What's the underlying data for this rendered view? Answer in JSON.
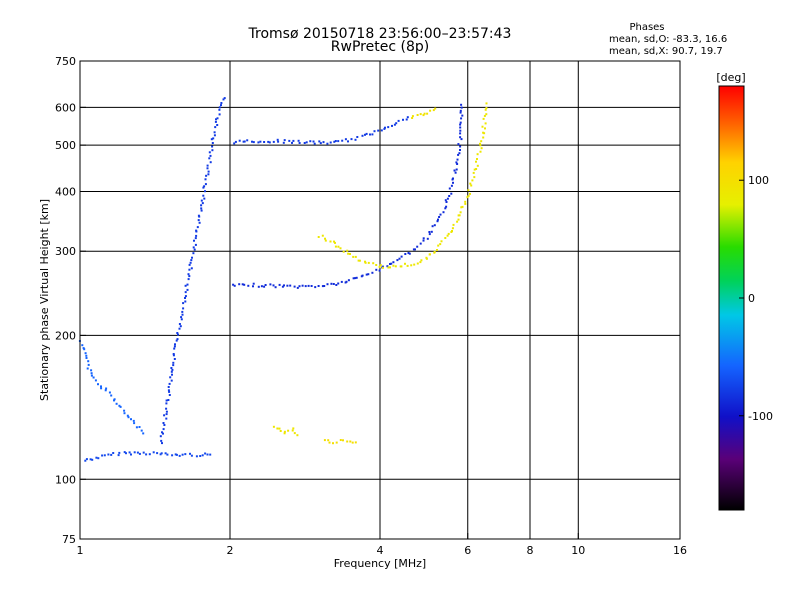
{
  "header": {
    "title": "Tromsø 20150718 23:56:00–23:57:43",
    "subtitle": "RwPretec (8p)"
  },
  "phase_info": {
    "title": "Phases",
    "o_line": "mean, sd,O: -83.3, 16.6",
    "x_line": "mean, sd,X: 90.7, 19.7"
  },
  "colorbar": {
    "unit_label": "[deg]",
    "range": [
      -180,
      180
    ],
    "ticks": [
      {
        "label": "100",
        "value": 100
      },
      {
        "label": "0",
        "value": 0
      },
      {
        "label": "-100",
        "value": -100
      }
    ]
  },
  "chart_data": {
    "type": "scatter",
    "title": "Tromsø 20150718 23:56:00–23:57:43",
    "subtitle": "RwPretec (8p)",
    "xlabel": "Frequency [MHz]",
    "ylabel": "Stationary phase Virtual Height [km]",
    "x_scale": "log",
    "y_scale": "log",
    "xlim": [
      1,
      16
    ],
    "ylim": [
      75,
      750
    ],
    "xticks": [
      1,
      2,
      4,
      6,
      8,
      10,
      16
    ],
    "xtick_labels": [
      "1",
      "2",
      "4",
      "6",
      "8",
      "10",
      "16"
    ],
    "xgrid": [
      2,
      4,
      6,
      8,
      10
    ],
    "yticks": [
      75,
      100,
      200,
      300,
      400,
      500,
      600,
      750
    ],
    "ytick_labels": [
      "75",
      "100",
      "200",
      "300",
      "400",
      "500",
      "600",
      "750"
    ],
    "ygrid": [
      100,
      200,
      300,
      400,
      500,
      600
    ],
    "grid": true,
    "color_scale": "phase in degrees, -180 to 180 (rainbow)",
    "series": [
      {
        "name": "O",
        "phase_mean": -83.3,
        "phase_sd": 16.6,
        "traces": [
          {
            "points": [
              [
                1.02,
                110
              ],
              [
                1.1,
                112
              ],
              [
                1.2,
                114
              ],
              [
                1.3,
                114
              ],
              [
                1.4,
                114
              ],
              [
                1.5,
                113
              ],
              [
                1.6,
                113
              ],
              [
                1.7,
                113
              ],
              [
                1.85,
                113
              ]
            ],
            "phase": -90
          },
          {
            "points": [
              [
                1.45,
                120
              ],
              [
                1.5,
                150
              ],
              [
                1.55,
                190
              ],
              [
                1.6,
                230
              ],
              [
                1.65,
                270
              ],
              [
                1.7,
                320
              ],
              [
                1.75,
                380
              ],
              [
                1.8,
                450
              ],
              [
                1.85,
                530
              ],
              [
                1.9,
                600
              ],
              [
                1.95,
                640
              ]
            ],
            "phase": -95
          },
          {
            "points": [
              [
                2.02,
                255
              ],
              [
                2.2,
                256
              ],
              [
                2.5,
                255
              ],
              [
                2.8,
                254
              ],
              [
                3.0,
                255
              ],
              [
                3.3,
                258
              ],
              [
                3.6,
                265
              ],
              [
                3.9,
                274
              ],
              [
                4.2,
                285
              ],
              [
                4.6,
                300
              ],
              [
                5.0,
                325
              ],
              [
                5.3,
                360
              ],
              [
                5.5,
                400
              ],
              [
                5.65,
                450
              ],
              [
                5.75,
                500
              ],
              [
                5.8,
                560
              ],
              [
                5.83,
                620
              ]
            ],
            "phase": -100
          },
          {
            "points": [
              [
                2.02,
                510
              ],
              [
                2.2,
                512
              ],
              [
                2.5,
                512
              ],
              [
                2.8,
                510
              ],
              [
                3.0,
                508
              ],
              [
                3.3,
                510
              ],
              [
                3.6,
                520
              ],
              [
                3.9,
                535
              ],
              [
                4.2,
                555
              ],
              [
                4.6,
                575
              ]
            ],
            "phase": -95
          },
          {
            "points": [
              [
                1.0,
                195
              ],
              [
                1.05,
                165
              ],
              [
                1.15,
                150
              ],
              [
                1.25,
                135
              ],
              [
                1.35,
                125
              ]
            ],
            "phase": -80
          }
        ]
      },
      {
        "name": "X",
        "phase_mean": 90.7,
        "phase_sd": 19.7,
        "traces": [
          {
            "points": [
              [
                3.0,
                325
              ],
              [
                3.2,
                315
              ],
              [
                3.4,
                300
              ],
              [
                3.6,
                290
              ],
              [
                3.8,
                284
              ],
              [
                4.0,
                280
              ],
              [
                4.3,
                280
              ],
              [
                4.6,
                283
              ],
              [
                4.9,
                290
              ],
              [
                5.2,
                305
              ],
              [
                5.5,
                330
              ],
              [
                5.8,
                365
              ],
              [
                6.0,
                400
              ],
              [
                6.2,
                450
              ],
              [
                6.35,
                500
              ],
              [
                6.45,
                560
              ],
              [
                6.5,
                620
              ]
            ],
            "phase": 90
          },
          {
            "points": [
              [
                4.6,
                575
              ],
              [
                4.9,
                585
              ],
              [
                5.2,
                598
              ]
            ],
            "phase": 95
          },
          {
            "points": [
              [
                2.45,
                130
              ],
              [
                2.55,
                125
              ],
              [
                2.65,
                128
              ],
              [
                2.75,
                122
              ]
            ],
            "phase": 90
          },
          {
            "points": [
              [
                3.1,
                122
              ],
              [
                3.2,
                120
              ],
              [
                3.3,
                121
              ],
              [
                3.5,
                120
              ],
              [
                3.6,
                121
              ]
            ],
            "phase": 100
          }
        ]
      }
    ]
  }
}
